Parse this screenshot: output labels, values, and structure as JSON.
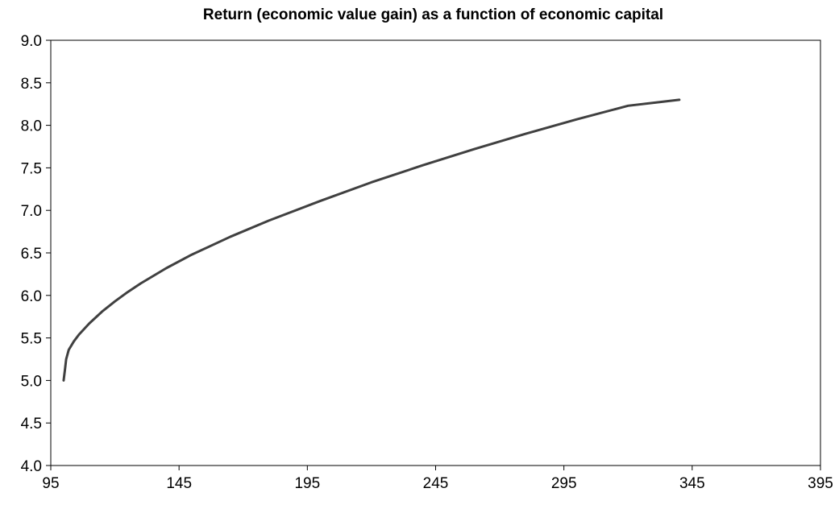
{
  "chart_data": {
    "type": "line",
    "title": "Return (economic value gain) as a function of economic capital",
    "xlabel": "",
    "ylabel": "",
    "xlim": [
      95,
      395
    ],
    "ylim": [
      4.0,
      9.0
    ],
    "xticks": [
      "95",
      "145",
      "195",
      "245",
      "295",
      "345",
      "395"
    ],
    "yticks": [
      "4.0",
      "4.5",
      "5.0",
      "5.5",
      "6.0",
      "6.5",
      "7.0",
      "7.5",
      "8.0",
      "8.5",
      "9.0"
    ],
    "grid": false,
    "legend": "none",
    "line_color": "#404040",
    "series": [
      {
        "x": [
          100,
          100.5,
          101,
          102,
          104,
          106,
          110,
          115,
          120,
          125,
          130,
          140,
          150,
          165,
          180,
          200,
          220,
          240,
          260,
          280,
          300,
          320,
          340
        ],
        "y": [
          5.0,
          5.12,
          5.25,
          5.36,
          5.46,
          5.54,
          5.67,
          5.81,
          5.93,
          6.04,
          6.14,
          6.32,
          6.48,
          6.69,
          6.88,
          7.11,
          7.33,
          7.53,
          7.72,
          7.9,
          8.07,
          8.23,
          8.3
        ]
      }
    ]
  }
}
